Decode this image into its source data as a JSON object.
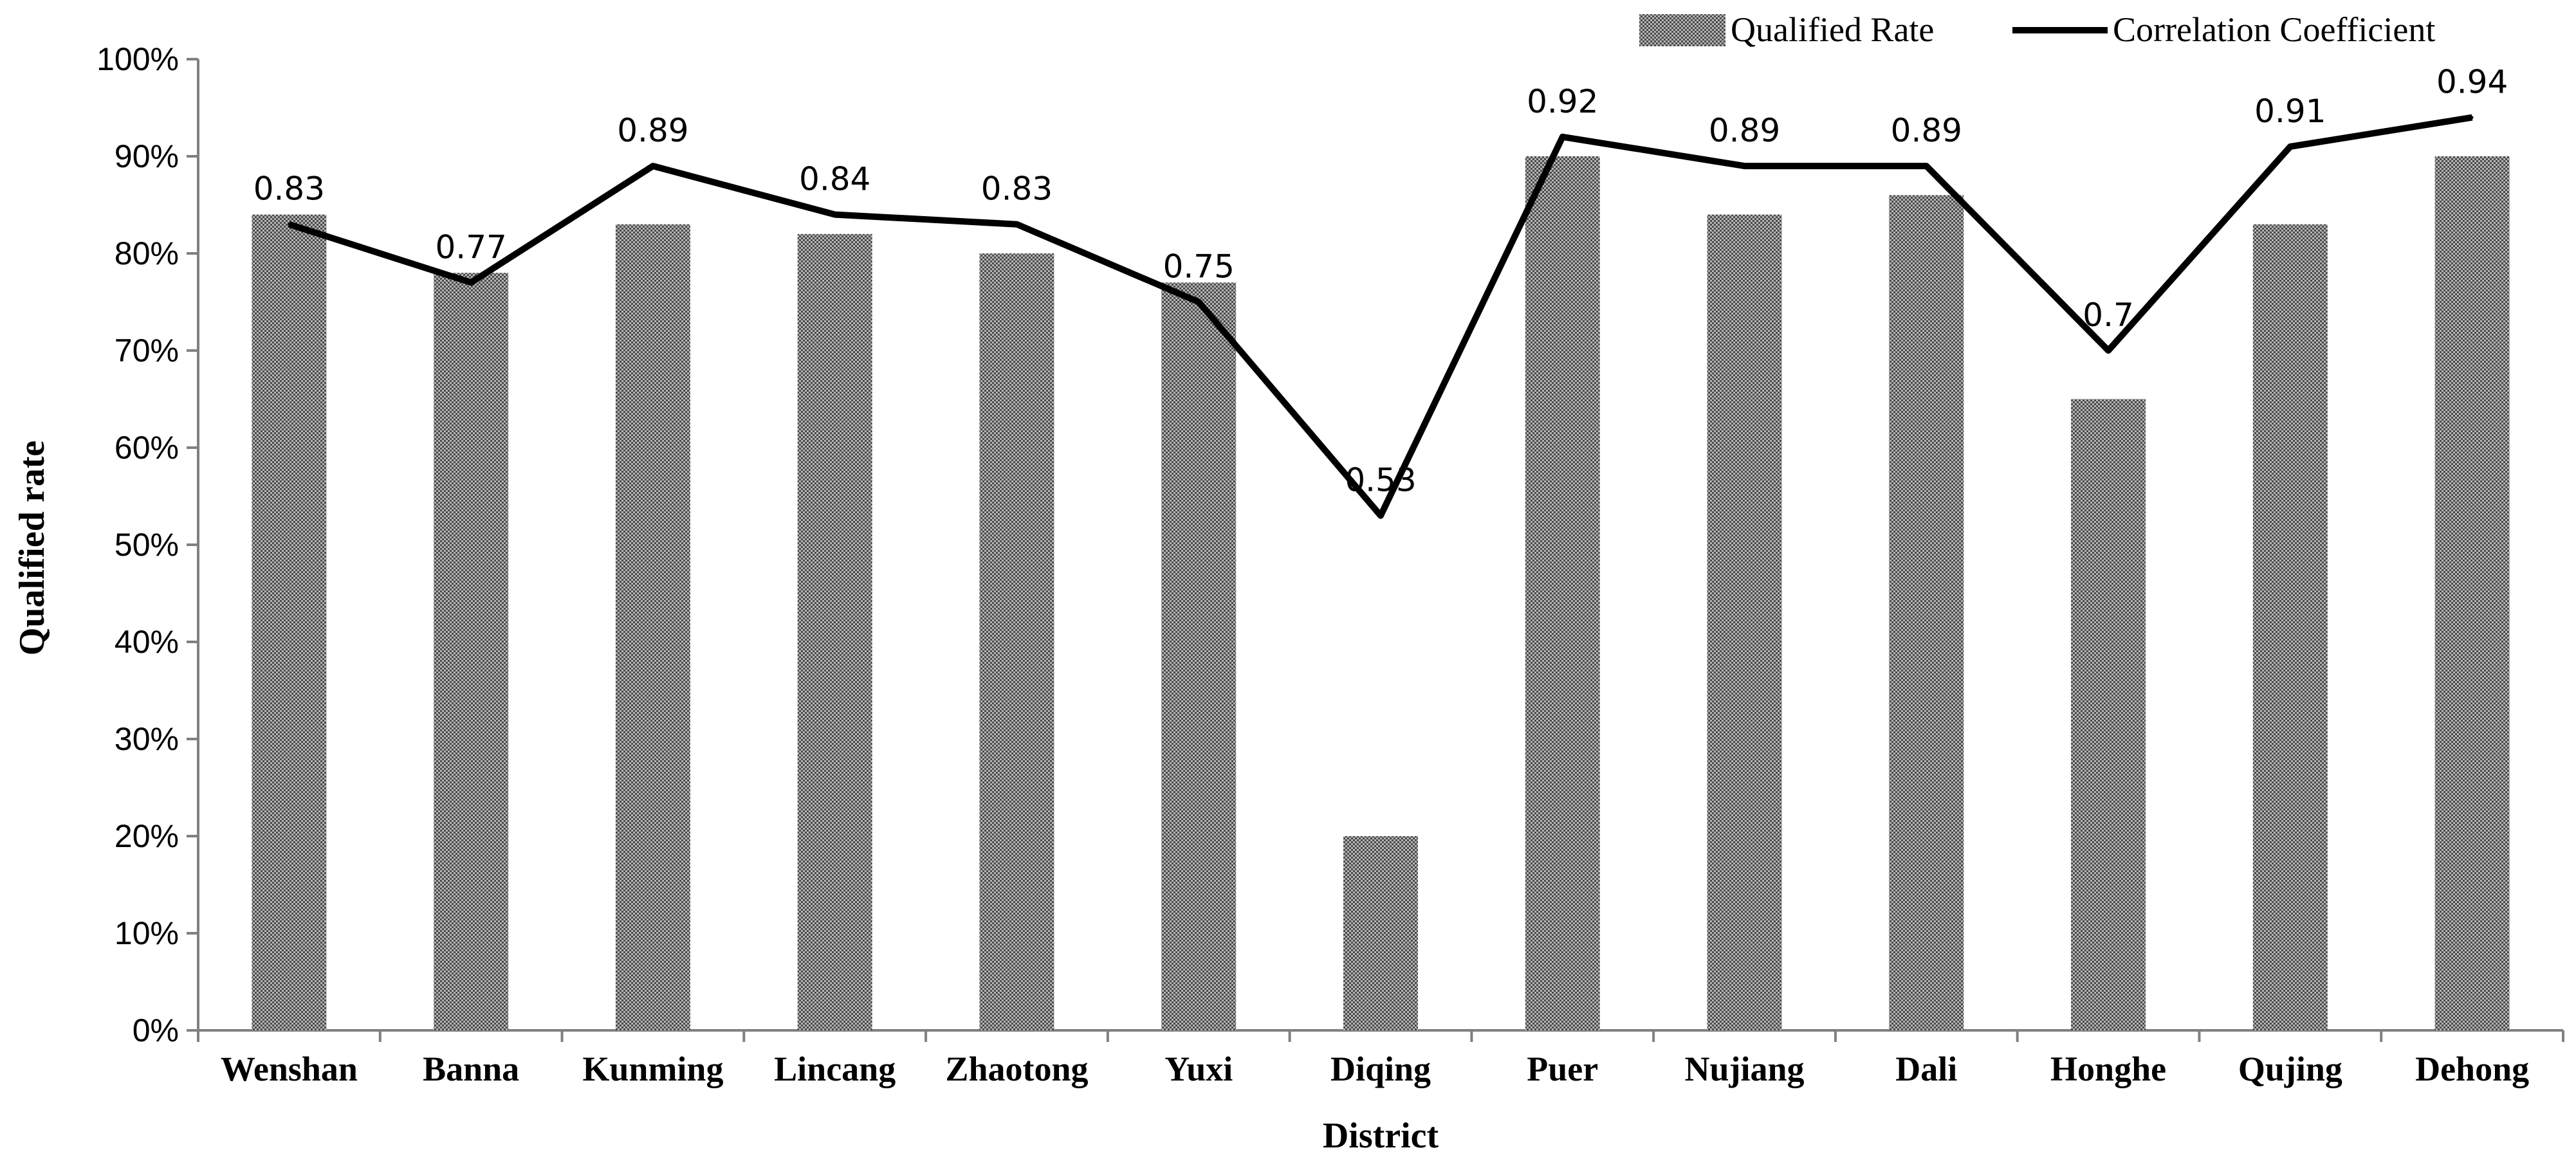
{
  "chart_data": {
    "type": "bar",
    "title": "",
    "xlabel": "District",
    "ylabel": "Qualified rate",
    "ylim": [
      0,
      100
    ],
    "y_ticks": [
      "0%",
      "10%",
      "20%",
      "30%",
      "40%",
      "50%",
      "60%",
      "70%",
      "80%",
      "90%",
      "100%"
    ],
    "categories": [
      "Wenshan",
      "Banna",
      "Kunming",
      "Lincang",
      "Zhaotong",
      "Yuxi",
      "Diqing",
      "Puer",
      "Nujiang",
      "Dali",
      "Honghe",
      "Qujing",
      "Dehong"
    ],
    "series": [
      {
        "name": "Qualified Rate",
        "kind": "bar",
        "unit": "percent",
        "values": [
          84,
          78,
          83,
          82,
          80,
          77,
          20,
          90,
          84,
          86,
          65,
          83,
          90
        ]
      },
      {
        "name": "Correlation Coefficient",
        "kind": "line",
        "values": [
          0.83,
          0.77,
          0.89,
          0.84,
          0.83,
          0.75,
          0.53,
          0.92,
          0.89,
          0.89,
          0.7,
          0.91,
          0.94
        ],
        "labels": [
          "0.83",
          "0.77",
          "0.89",
          "0.84",
          "0.83",
          "0.75",
          "0.53",
          "0.92",
          "0.89",
          "0.89",
          "0.7",
          "0.91",
          "0.94"
        ]
      }
    ],
    "grid": false,
    "legend_position": "top-right",
    "colors": {
      "bar": "#8c8c8c",
      "line": "#000000",
      "axis": "#808080"
    }
  }
}
